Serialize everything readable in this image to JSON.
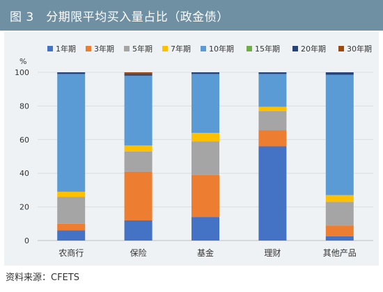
{
  "title": "图 3　分期限平均买入量占比（政金债）",
  "source": "资料来源：CFETS",
  "chart_data": {
    "type": "bar",
    "stacked": true,
    "categories": [
      "农商行",
      "保险",
      "基金",
      "理财",
      "其他产品"
    ],
    "y_unit_label": "%",
    "ylim": [
      0,
      100
    ],
    "yticks": [
      0,
      20,
      40,
      60,
      80,
      100
    ],
    "grid": true,
    "legend_position": "top",
    "series": [
      {
        "name": "1年期",
        "color": "#4472c4",
        "values": [
          6,
          12,
          14,
          56,
          2.5
        ]
      },
      {
        "name": "3年期",
        "color": "#ed7d31",
        "values": [
          4,
          29,
          25,
          9.5,
          6.5
        ]
      },
      {
        "name": "5年期",
        "color": "#a5a5a5",
        "values": [
          16,
          12,
          20,
          11.5,
          14
        ]
      },
      {
        "name": "7年期",
        "color": "#ffc000",
        "values": [
          3,
          3.5,
          5,
          2.5,
          4
        ]
      },
      {
        "name": "10年期",
        "color": "#5b9bd5",
        "values": [
          70,
          41.5,
          35,
          19.5,
          71.5
        ]
      },
      {
        "name": "15年期",
        "color": "#70ad47",
        "values": [
          0,
          0,
          0,
          0,
          0
        ]
      },
      {
        "name": "20年期",
        "color": "#264478",
        "values": [
          1,
          1,
          1,
          1,
          1.5
        ]
      },
      {
        "name": "30年期",
        "color": "#9e480e",
        "values": [
          0,
          1,
          0,
          0,
          0
        ]
      }
    ]
  }
}
